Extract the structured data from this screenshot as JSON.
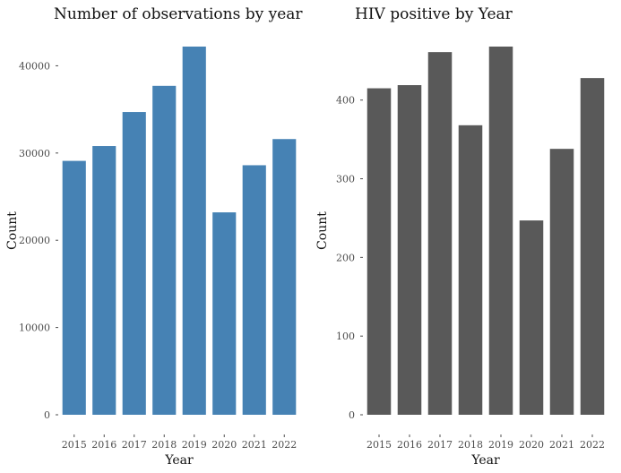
{
  "chart_data": [
    {
      "type": "bar",
      "title": "Number of observations by year",
      "xlabel": "Year",
      "ylabel": "Count",
      "categories": [
        "2015",
        "2016",
        "2017",
        "2018",
        "2019",
        "2020",
        "2021",
        "2022"
      ],
      "values": [
        29100,
        30800,
        34700,
        37700,
        42200,
        23200,
        28600,
        31600
      ],
      "ylim": [
        0,
        42200
      ],
      "yticks": [
        0,
        10000,
        20000,
        30000,
        40000
      ],
      "ytick_labels": [
        "0",
        "10000",
        "20000",
        "30000",
        "40000"
      ],
      "bar_color": "#4682B4",
      "grid": false
    },
    {
      "type": "bar",
      "title": "HIV positive by Year",
      "xlabel": "Year",
      "ylabel": "Count",
      "categories": [
        "2015",
        "2016",
        "2017",
        "2018",
        "2019",
        "2020",
        "2021",
        "2022"
      ],
      "values": [
        415,
        419,
        461,
        368,
        468,
        247,
        338,
        428
      ],
      "ylim": [
        0,
        468
      ],
      "yticks": [
        0,
        100,
        200,
        300,
        400
      ],
      "ytick_labels": [
        "0",
        "100",
        "200",
        "300",
        "400"
      ],
      "bar_color": "#595959",
      "grid": false
    }
  ]
}
